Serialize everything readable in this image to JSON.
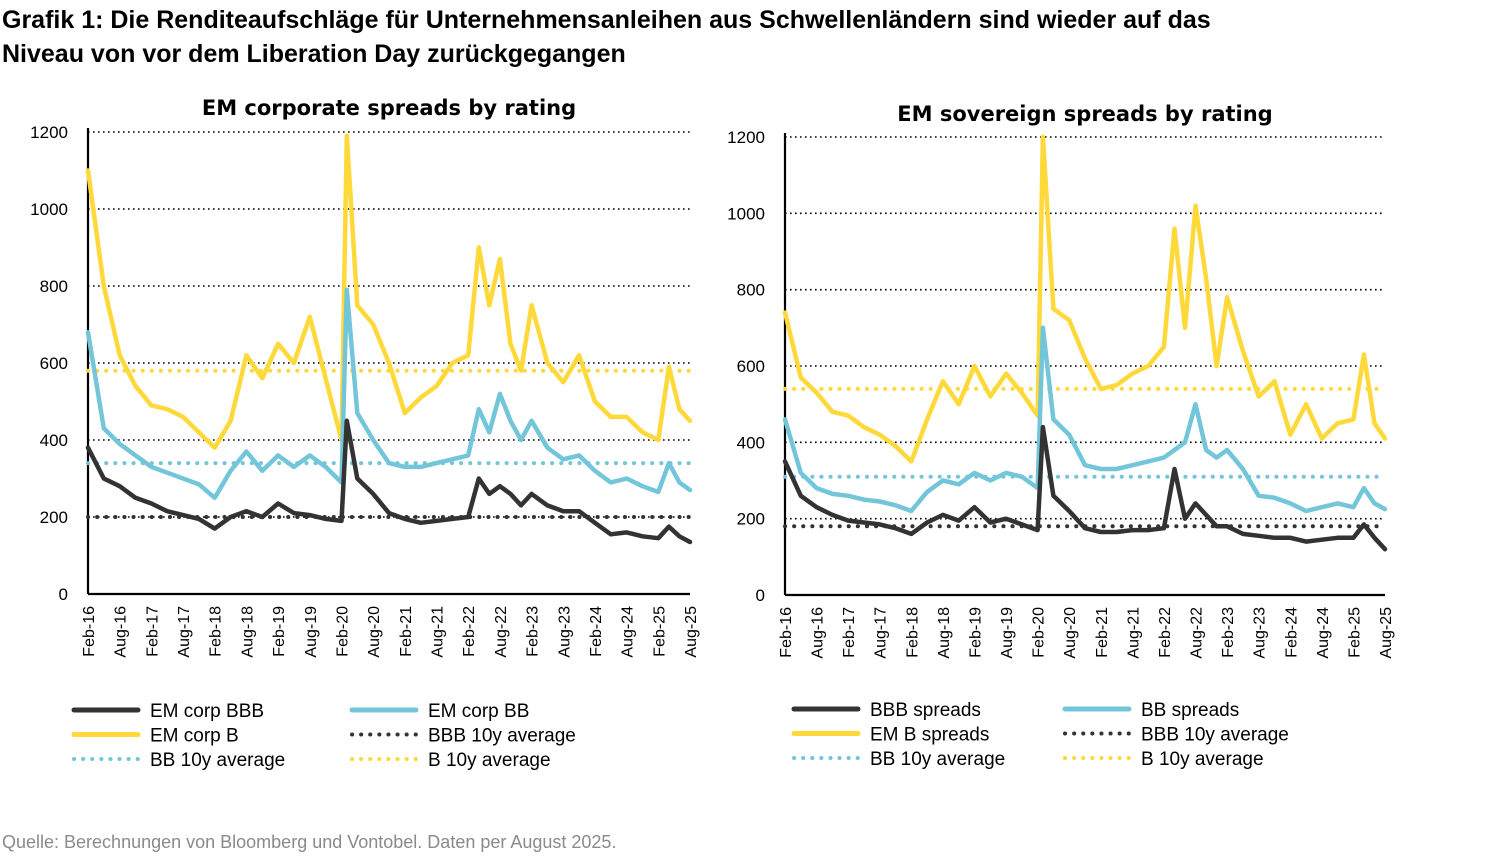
{
  "title_lines": [
    "Grafik 1: Die Renditeaufschläge für Unternehmensanleihen aus Schwellenländern sind wieder auf das",
    "Niveau von vor dem Liberation Day zurückgegangen"
  ],
  "source": "Quelle: Berechnungen von Bloomberg und Vontobel. Daten per August 2025.",
  "colors": {
    "BBB": "#333333",
    "BB": "#73C6D9",
    "B": "#FFD83A"
  },
  "chart_data": [
    {
      "type": "line",
      "title": "EM corporate spreads by rating",
      "ylim": [
        0,
        1200
      ],
      "yticks": [
        0,
        200,
        400,
        600,
        800,
        1000,
        1200
      ],
      "grid": "horizontal dotted",
      "x_tick_labels": [
        "Feb-16",
        "Aug-16",
        "Feb-17",
        "Aug-17",
        "Feb-18",
        "Aug-18",
        "Feb-19",
        "Aug-19",
        "Feb-20",
        "Aug-20",
        "Feb-21",
        "Aug-21",
        "Feb-22",
        "Aug-22",
        "Feb-23",
        "Aug-23",
        "Feb-24",
        "Aug-24",
        "Feb-25",
        "Aug-25"
      ],
      "x": [
        "Feb-16",
        "May-16",
        "Aug-16",
        "Nov-16",
        "Feb-17",
        "May-17",
        "Aug-17",
        "Nov-17",
        "Feb-18",
        "May-18",
        "Aug-18",
        "Nov-18",
        "Feb-19",
        "May-19",
        "Aug-19",
        "Nov-19",
        "Feb-20",
        "Mar-20",
        "May-20",
        "Aug-20",
        "Nov-20",
        "Feb-21",
        "May-21",
        "Aug-21",
        "Nov-21",
        "Feb-22",
        "Apr-22",
        "Jun-22",
        "Aug-22",
        "Oct-22",
        "Dec-22",
        "Feb-23",
        "May-23",
        "Aug-23",
        "Nov-23",
        "Feb-24",
        "May-24",
        "Aug-24",
        "Nov-24",
        "Feb-25",
        "Apr-25",
        "Jun-25",
        "Aug-25"
      ],
      "series": [
        {
          "name": "EM corp BBB",
          "style": "solid",
          "color": "#333333",
          "values": [
            380,
            300,
            280,
            250,
            235,
            215,
            205,
            195,
            170,
            200,
            215,
            200,
            235,
            210,
            205,
            195,
            190,
            450,
            300,
            260,
            210,
            195,
            185,
            190,
            195,
            200,
            300,
            260,
            280,
            260,
            230,
            260,
            230,
            215,
            215,
            185,
            155,
            160,
            150,
            145,
            175,
            150,
            135
          ]
        },
        {
          "name": "EM corp BB",
          "style": "solid",
          "color": "#73C6D9",
          "values": [
            680,
            430,
            390,
            360,
            330,
            315,
            300,
            285,
            250,
            320,
            370,
            320,
            360,
            330,
            360,
            330,
            290,
            790,
            470,
            400,
            340,
            330,
            330,
            340,
            350,
            360,
            480,
            420,
            520,
            450,
            400,
            450,
            380,
            350,
            360,
            320,
            290,
            300,
            280,
            265,
            340,
            290,
            270
          ]
        },
        {
          "name": "EM corp B",
          "style": "solid",
          "color": "#FFD83A",
          "values": [
            1100,
            800,
            620,
            540,
            490,
            480,
            460,
            420,
            380,
            450,
            620,
            560,
            650,
            600,
            720,
            560,
            400,
            1190,
            750,
            700,
            600,
            470,
            510,
            540,
            600,
            620,
            900,
            750,
            870,
            650,
            580,
            750,
            600,
            550,
            620,
            500,
            460,
            460,
            420,
            400,
            590,
            480,
            450
          ]
        },
        {
          "name": "BBB 10y average",
          "style": "dotted",
          "color": "#333333",
          "values": [
            200,
            200,
            200,
            200,
            200,
            200,
            200,
            200,
            200,
            200,
            200,
            200,
            200,
            200,
            200,
            200,
            200,
            200,
            200,
            200,
            200,
            200,
            200,
            200,
            200,
            200,
            200,
            200,
            200,
            200,
            200,
            200,
            200,
            200,
            200,
            200,
            200,
            200,
            200,
            200,
            200,
            200,
            200
          ]
        },
        {
          "name": "BB 10y average",
          "style": "dotted",
          "color": "#73C6D9",
          "values": [
            340,
            340,
            340,
            340,
            340,
            340,
            340,
            340,
            340,
            340,
            340,
            340,
            340,
            340,
            340,
            340,
            340,
            340,
            340,
            340,
            340,
            340,
            340,
            340,
            340,
            340,
            340,
            340,
            340,
            340,
            340,
            340,
            340,
            340,
            340,
            340,
            340,
            340,
            340,
            340,
            340,
            340,
            340
          ]
        },
        {
          "name": "B 10y average",
          "style": "dotted",
          "color": "#FFD83A",
          "values": [
            580,
            580,
            580,
            580,
            580,
            580,
            580,
            580,
            580,
            580,
            580,
            580,
            580,
            580,
            580,
            580,
            580,
            580,
            580,
            580,
            580,
            580,
            580,
            580,
            580,
            580,
            580,
            580,
            580,
            580,
            580,
            580,
            580,
            580,
            580,
            580,
            580,
            580,
            580,
            580,
            580,
            580,
            580
          ]
        }
      ],
      "legend_order": [
        "EM corp BBB",
        "EM corp BB",
        "EM corp B",
        "BBB 10y average",
        "BB 10y average",
        "B 10y average"
      ],
      "legend_placement": "bottom"
    },
    {
      "type": "line",
      "title": "EM sovereign spreads by rating",
      "ylim": [
        0,
        1200
      ],
      "yticks": [
        0,
        200,
        400,
        600,
        800,
        1000,
        1200
      ],
      "grid": "horizontal dotted",
      "x_tick_labels": [
        "Feb-16",
        "Aug-16",
        "Feb-17",
        "Aug-17",
        "Feb-18",
        "Aug-18",
        "Feb-19",
        "Aug-19",
        "Feb-20",
        "Aug-20",
        "Feb-21",
        "Aug-21",
        "Feb-22",
        "Aug-22",
        "Feb-23",
        "Aug-23",
        "Feb-24",
        "Aug-24",
        "Feb-25",
        "Aug-25"
      ],
      "x": [
        "Feb-16",
        "May-16",
        "Aug-16",
        "Nov-16",
        "Feb-17",
        "May-17",
        "Aug-17",
        "Nov-17",
        "Feb-18",
        "May-18",
        "Aug-18",
        "Nov-18",
        "Feb-19",
        "May-19",
        "Aug-19",
        "Nov-19",
        "Feb-20",
        "Mar-20",
        "May-20",
        "Aug-20",
        "Nov-20",
        "Feb-21",
        "May-21",
        "Aug-21",
        "Nov-21",
        "Feb-22",
        "Apr-22",
        "Jun-22",
        "Aug-22",
        "Oct-22",
        "Dec-22",
        "Feb-23",
        "May-23",
        "Aug-23",
        "Nov-23",
        "Feb-24",
        "May-24",
        "Aug-24",
        "Nov-24",
        "Feb-25",
        "Apr-25",
        "Jun-25",
        "Aug-25"
      ],
      "series": [
        {
          "name": "BBB spreads",
          "style": "solid",
          "color": "#333333",
          "values": [
            350,
            260,
            230,
            210,
            195,
            190,
            185,
            175,
            160,
            190,
            210,
            195,
            230,
            190,
            200,
            185,
            170,
            440,
            260,
            220,
            175,
            165,
            165,
            170,
            170,
            175,
            330,
            200,
            240,
            210,
            180,
            180,
            160,
            155,
            150,
            150,
            140,
            145,
            150,
            150,
            185,
            150,
            120
          ]
        },
        {
          "name": "BB spreads",
          "style": "solid",
          "color": "#73C6D9",
          "values": [
            460,
            320,
            280,
            265,
            260,
            250,
            245,
            235,
            220,
            270,
            300,
            290,
            320,
            300,
            320,
            310,
            280,
            700,
            460,
            420,
            340,
            330,
            330,
            340,
            350,
            360,
            380,
            400,
            500,
            380,
            360,
            380,
            330,
            260,
            255,
            240,
            220,
            230,
            240,
            230,
            280,
            240,
            225
          ]
        },
        {
          "name": "EM B spreads",
          "style": "solid",
          "color": "#FFD83A",
          "values": [
            740,
            570,
            530,
            480,
            470,
            440,
            420,
            390,
            350,
            460,
            560,
            500,
            600,
            520,
            580,
            530,
            470,
            1200,
            750,
            720,
            620,
            540,
            550,
            580,
            600,
            650,
            960,
            700,
            1020,
            830,
            600,
            780,
            640,
            520,
            560,
            420,
            500,
            410,
            450,
            460,
            630,
            450,
            410
          ]
        },
        {
          "name": "BBB 10y average",
          "style": "dotted",
          "color": "#333333",
          "values": [
            180,
            180,
            180,
            180,
            180,
            180,
            180,
            180,
            180,
            180,
            180,
            180,
            180,
            180,
            180,
            180,
            180,
            180,
            180,
            180,
            180,
            180,
            180,
            180,
            180,
            180,
            180,
            180,
            180,
            180,
            180,
            180,
            180,
            180,
            180,
            180,
            180,
            180,
            180,
            180,
            180,
            180,
            180
          ]
        },
        {
          "name": "BB 10y average",
          "style": "dotted",
          "color": "#73C6D9",
          "values": [
            310,
            310,
            310,
            310,
            310,
            310,
            310,
            310,
            310,
            310,
            310,
            310,
            310,
            310,
            310,
            310,
            310,
            310,
            310,
            310,
            310,
            310,
            310,
            310,
            310,
            310,
            310,
            310,
            310,
            310,
            310,
            310,
            310,
            310,
            310,
            310,
            310,
            310,
            310,
            310,
            310,
            310,
            310
          ]
        },
        {
          "name": "B 10y average",
          "style": "dotted",
          "color": "#FFD83A",
          "values": [
            540,
            540,
            540,
            540,
            540,
            540,
            540,
            540,
            540,
            540,
            540,
            540,
            540,
            540,
            540,
            540,
            540,
            540,
            540,
            540,
            540,
            540,
            540,
            540,
            540,
            540,
            540,
            540,
            540,
            540,
            540,
            540,
            540,
            540,
            540,
            540,
            540,
            540,
            540,
            540,
            540,
            540,
            540
          ]
        }
      ],
      "legend_order": [
        "BBB spreads",
        "BB spreads",
        "EM B spreads",
        "BBB 10y average",
        "BB 10y average",
        "B 10y average"
      ],
      "legend_placement": "bottom"
    }
  ]
}
